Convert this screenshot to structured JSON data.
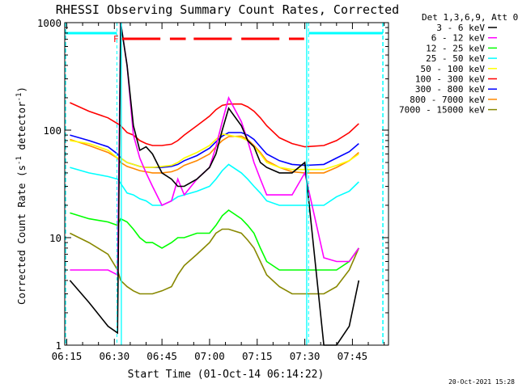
{
  "chart_data": {
    "type": "line",
    "title": "RHESSI Observing Summary Count Rates, Corrected",
    "xlabel": "Start Time (01-Oct-14 06:14:22)",
    "ylabel": "Corrected Count Rate (s⁻¹ detector⁻¹)",
    "ylabel_main": "Corrected Count Rate (s",
    "ylabel_sup1": "-1",
    "ylabel_mid": " detector",
    "ylabel_sup2": "-1",
    "ylabel_end": ")",
    "x_ticks": [
      "06:15",
      "06:30",
      "06:45",
      "07:00",
      "07:15",
      "07:30",
      "07:45"
    ],
    "x_tick_minutes": [
      15,
      30,
      45,
      60,
      75,
      90,
      105
    ],
    "xlim_minutes": [
      14.37,
      116.37
    ],
    "y_scale": "log",
    "ylim": [
      1,
      1000
    ],
    "y_ticks": [
      "1",
      "10",
      "100",
      "1000"
    ],
    "legend_title": "Det 1,3,6,9, Att 0",
    "legend_position": "right",
    "flag_label": "F",
    "timestamp": "20-Oct-2021 15:28",
    "x": [
      16,
      22,
      28,
      31,
      32,
      34,
      36,
      38,
      40,
      42,
      45,
      48,
      50,
      52,
      56,
      60,
      62,
      64,
      66,
      70,
      72,
      74,
      76,
      78,
      82,
      86,
      90,
      96,
      100,
      104,
      107
    ],
    "series": [
      {
        "name": "3 - 6 keV",
        "color": "#000000",
        "values": [
          4,
          2.5,
          1.5,
          1.3,
          1000,
          400,
          110,
          65,
          70,
          60,
          40,
          35,
          30,
          30,
          35,
          45,
          60,
          100,
          160,
          110,
          80,
          70,
          50,
          45,
          40,
          40,
          50,
          1,
          1,
          1.5,
          4
        ]
      },
      {
        "name": "6 - 12 keV",
        "color": "#ff00ff",
        "values": [
          5,
          5,
          5,
          4.5,
          1000,
          400,
          90,
          55,
          40,
          30,
          20,
          22,
          35,
          25,
          35,
          45,
          70,
          120,
          200,
          120,
          80,
          50,
          35,
          25,
          25,
          25,
          40,
          6.5,
          6,
          6,
          8
        ]
      },
      {
        "name": "12 - 25 keV",
        "color": "#00ff00",
        "values": [
          17,
          15,
          14,
          13,
          15,
          14,
          12,
          10,
          9,
          9,
          8,
          9,
          10,
          10,
          11,
          11,
          13,
          16,
          18,
          15,
          13,
          11,
          8,
          6,
          5,
          5,
          5,
          5,
          5,
          6,
          8
        ]
      },
      {
        "name": "25 - 50 keV",
        "color": "#00ffff",
        "values": [
          45,
          40,
          37,
          35,
          32,
          26,
          25,
          23,
          22,
          20,
          20,
          22,
          24,
          25,
          27,
          30,
          35,
          42,
          48,
          40,
          35,
          30,
          26,
          22,
          20,
          20,
          20,
          20,
          24,
          27,
          33
        ]
      },
      {
        "name": "50 - 100 keV",
        "color": "#ffff00",
        "values": [
          80,
          75,
          65,
          55,
          55,
          50,
          48,
          46,
          45,
          45,
          46,
          47,
          50,
          55,
          62,
          72,
          82,
          92,
          90,
          85,
          80,
          70,
          60,
          50,
          45,
          43,
          43,
          43,
          47,
          52,
          60
        ]
      },
      {
        "name": "100 - 300 keV",
        "color": "#ff0000",
        "values": [
          180,
          150,
          130,
          115,
          110,
          95,
          90,
          80,
          75,
          72,
          72,
          74,
          80,
          90,
          110,
          135,
          155,
          170,
          175,
          175,
          165,
          150,
          130,
          110,
          85,
          75,
          70,
          72,
          80,
          95,
          115
        ]
      },
      {
        "name": "300 - 800 keV",
        "color": "#0000ff",
        "values": [
          90,
          80,
          70,
          60,
          55,
          50,
          48,
          46,
          45,
          45,
          45,
          46,
          48,
          52,
          58,
          68,
          78,
          88,
          95,
          95,
          90,
          82,
          70,
          60,
          52,
          48,
          47,
          48,
          55,
          63,
          75
        ]
      },
      {
        "name": "800 - 7000 keV",
        "color": "#ff8800",
        "values": [
          82,
          72,
          62,
          55,
          50,
          46,
          44,
          42,
          41,
          40,
          40,
          41,
          43,
          47,
          52,
          60,
          70,
          80,
          87,
          88,
          82,
          72,
          62,
          52,
          45,
          41,
          40,
          40,
          45,
          52,
          62
        ]
      },
      {
        "name": "7000 - 15000 keV",
        "color": "#888800",
        "values": [
          11,
          9,
          7,
          5,
          4,
          3.5,
          3.2,
          3,
          3,
          3,
          3.2,
          3.5,
          4.5,
          5.5,
          7,
          9,
          11,
          12,
          12,
          11,
          9.5,
          8,
          6,
          4.5,
          3.5,
          3,
          3,
          3,
          3.5,
          5,
          8
        ]
      }
    ],
    "annotations": {
      "shaded_edge_lines_minutes": [
        14.6,
        114.6
      ],
      "solid_boundary_lines_minutes": [
        32.2,
        90.6
      ],
      "dashed_boundary_lines_minutes": [
        30.8,
        91.2
      ],
      "cyan_bar_ranges_minutes": [
        [
          14.6,
          30.8
        ],
        [
          91.2,
          114.6
        ]
      ],
      "red_flag_dashes_minutes": [
        [
          32.4,
          44.5
        ],
        [
          47.5,
          52.5
        ],
        [
          55.0,
          67.0
        ],
        [
          70.0,
          82.0
        ],
        [
          85.0,
          89.8
        ]
      ]
    }
  }
}
